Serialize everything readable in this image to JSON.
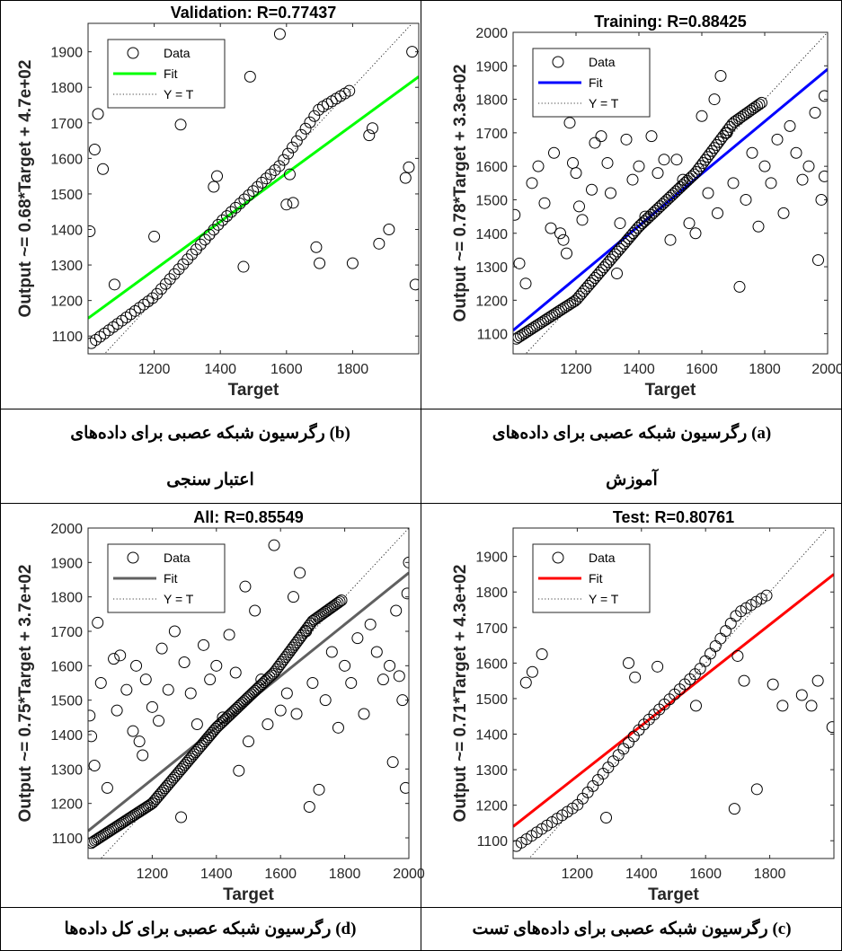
{
  "captions": {
    "b": {
      "letter": "(b)",
      "line1": "رگرسیون شبکه عصبی برای داده‌های",
      "line2": "اعتبار سنجی"
    },
    "a": {
      "letter": "(a)",
      "line1": "رگرسیون شبکه عصبی برای داده‌های",
      "line2": "آموزش"
    },
    "d": {
      "letter": "(d)",
      "line1": "رگرسیون شبکه عصبی برای کل داده‌ها"
    },
    "c": {
      "letter": "(c)",
      "line1": "رگرسیون شبکه عصبی برای داده‌های تست"
    }
  },
  "chart_data": [
    {
      "id": "validation",
      "type": "scatter",
      "title": "Validation: R=0.77437",
      "xlabel": "Target",
      "ylabel": "Output ~= 0.68*Target + 4.7e+02",
      "xlim": [
        1000,
        2000
      ],
      "ylim": [
        1050,
        1980
      ],
      "xticks": [
        1200,
        1400,
        1600,
        1800
      ],
      "yticks": [
        1100,
        1200,
        1300,
        1400,
        1500,
        1600,
        1700,
        1800,
        1900
      ],
      "fit": {
        "slope": 0.68,
        "intercept": 470,
        "color": "#00ff00"
      },
      "legend": {
        "data": "Data",
        "fit": "Fit",
        "yt": "Y = T"
      },
      "curve": [
        [
          1010,
          1080
        ],
        [
          1200,
          1210
        ],
        [
          1400,
          1420
        ],
        [
          1580,
          1580
        ],
        [
          1700,
          1740
        ],
        [
          1790,
          1790
        ]
      ],
      "scatter": [
        [
          1005,
          1395
        ],
        [
          1020,
          1625
        ],
        [
          1030,
          1725
        ],
        [
          1045,
          1570
        ],
        [
          1080,
          1245
        ],
        [
          1200,
          1380
        ],
        [
          1280,
          1695
        ],
        [
          1380,
          1520
        ],
        [
          1390,
          1550
        ],
        [
          1470,
          1295
        ],
        [
          1490,
          1830
        ],
        [
          1580,
          1950
        ],
        [
          1600,
          1470
        ],
        [
          1610,
          1555
        ],
        [
          1620,
          1475
        ],
        [
          1690,
          1350
        ],
        [
          1700,
          1305
        ],
        [
          1800,
          1305
        ],
        [
          1850,
          1665
        ],
        [
          1860,
          1685
        ],
        [
          1880,
          1360
        ],
        [
          1910,
          1400
        ],
        [
          1960,
          1545
        ],
        [
          1970,
          1575
        ],
        [
          1980,
          1900
        ],
        [
          1990,
          1245
        ]
      ],
      "curve_n": 60
    },
    {
      "id": "training",
      "type": "scatter",
      "title": "Training: R=0.88425",
      "xlabel": "Target",
      "ylabel": "Output ~= 0.78*Target + 3.3e+02",
      "xlim": [
        1000,
        2000
      ],
      "ylim": [
        1040,
        2000
      ],
      "xticks": [
        1200,
        1400,
        1600,
        1800,
        2000
      ],
      "yticks": [
        1100,
        1200,
        1300,
        1400,
        1500,
        1600,
        1700,
        1800,
        1900,
        2000
      ],
      "fit": {
        "slope": 0.78,
        "intercept": 330,
        "color": "#0000ff"
      },
      "legend": {
        "data": "Data",
        "fit": "Fit",
        "yt": "Y = T"
      },
      "curve": [
        [
          1010,
          1085
        ],
        [
          1200,
          1200
        ],
        [
          1400,
          1420
        ],
        [
          1580,
          1580
        ],
        [
          1700,
          1730
        ],
        [
          1790,
          1790
        ]
      ],
      "scatter": [
        [
          1005,
          1455
        ],
        [
          1020,
          1310
        ],
        [
          1040,
          1250
        ],
        [
          1060,
          1550
        ],
        [
          1080,
          1600
        ],
        [
          1100,
          1490
        ],
        [
          1120,
          1415
        ],
        [
          1130,
          1640
        ],
        [
          1150,
          1400
        ],
        [
          1160,
          1380
        ],
        [
          1170,
          1340
        ],
        [
          1180,
          1730
        ],
        [
          1190,
          1610
        ],
        [
          1200,
          1580
        ],
        [
          1210,
          1480
        ],
        [
          1220,
          1440
        ],
        [
          1250,
          1530
        ],
        [
          1260,
          1670
        ],
        [
          1280,
          1690
        ],
        [
          1300,
          1610
        ],
        [
          1310,
          1520
        ],
        [
          1330,
          1280
        ],
        [
          1340,
          1430
        ],
        [
          1360,
          1680
        ],
        [
          1380,
          1560
        ],
        [
          1400,
          1600
        ],
        [
          1420,
          1450
        ],
        [
          1440,
          1690
        ],
        [
          1460,
          1580
        ],
        [
          1480,
          1620
        ],
        [
          1500,
          1380
        ],
        [
          1520,
          1620
        ],
        [
          1540,
          1560
        ],
        [
          1560,
          1430
        ],
        [
          1580,
          1400
        ],
        [
          1600,
          1750
        ],
        [
          1620,
          1520
        ],
        [
          1640,
          1800
        ],
        [
          1650,
          1460
        ],
        [
          1660,
          1870
        ],
        [
          1680,
          1700
        ],
        [
          1700,
          1550
        ],
        [
          1720,
          1240
        ],
        [
          1740,
          1500
        ],
        [
          1760,
          1640
        ],
        [
          1780,
          1420
        ],
        [
          1800,
          1600
        ],
        [
          1820,
          1550
        ],
        [
          1840,
          1680
        ],
        [
          1860,
          1460
        ],
        [
          1880,
          1720
        ],
        [
          1900,
          1640
        ],
        [
          1920,
          1560
        ],
        [
          1940,
          1600
        ],
        [
          1960,
          1760
        ],
        [
          1970,
          1320
        ],
        [
          1980,
          1500
        ],
        [
          1990,
          1570
        ],
        [
          1990,
          1810
        ]
      ],
      "curve_n": 110
    },
    {
      "id": "all",
      "type": "scatter",
      "title": "All: R=0.85549",
      "xlabel": "Target",
      "ylabel": "Output ~= 0.75*Target + 3.7e+02",
      "xlim": [
        1000,
        2000
      ],
      "ylim": [
        1040,
        2000
      ],
      "xticks": [
        1200,
        1400,
        1600,
        1800,
        2000
      ],
      "yticks": [
        1100,
        1200,
        1300,
        1400,
        1500,
        1600,
        1700,
        1800,
        1900,
        2000
      ],
      "fit": {
        "slope": 0.75,
        "intercept": 370,
        "color": "#606060"
      },
      "legend": {
        "data": "Data",
        "fit": "Fit",
        "yt": "Y = T"
      },
      "curve": [
        [
          1010,
          1085
        ],
        [
          1200,
          1200
        ],
        [
          1400,
          1420
        ],
        [
          1580,
          1580
        ],
        [
          1700,
          1730
        ],
        [
          1790,
          1790
        ]
      ],
      "scatter": [
        [
          1005,
          1455
        ],
        [
          1010,
          1395
        ],
        [
          1020,
          1310
        ],
        [
          1030,
          1725
        ],
        [
          1040,
          1550
        ],
        [
          1060,
          1245
        ],
        [
          1080,
          1620
        ],
        [
          1090,
          1470
        ],
        [
          1100,
          1630
        ],
        [
          1120,
          1530
        ],
        [
          1140,
          1410
        ],
        [
          1150,
          1600
        ],
        [
          1160,
          1380
        ],
        [
          1170,
          1340
        ],
        [
          1180,
          1560
        ],
        [
          1200,
          1480
        ],
        [
          1220,
          1440
        ],
        [
          1230,
          1650
        ],
        [
          1250,
          1530
        ],
        [
          1270,
          1700
        ],
        [
          1290,
          1160
        ],
        [
          1300,
          1610
        ],
        [
          1320,
          1520
        ],
        [
          1340,
          1430
        ],
        [
          1360,
          1660
        ],
        [
          1380,
          1560
        ],
        [
          1400,
          1600
        ],
        [
          1420,
          1450
        ],
        [
          1440,
          1690
        ],
        [
          1460,
          1580
        ],
        [
          1470,
          1295
        ],
        [
          1490,
          1830
        ],
        [
          1500,
          1380
        ],
        [
          1520,
          1760
        ],
        [
          1540,
          1560
        ],
        [
          1560,
          1430
        ],
        [
          1580,
          1950
        ],
        [
          1600,
          1470
        ],
        [
          1620,
          1520
        ],
        [
          1640,
          1800
        ],
        [
          1650,
          1460
        ],
        [
          1660,
          1870
        ],
        [
          1680,
          1700
        ],
        [
          1690,
          1190
        ],
        [
          1700,
          1550
        ],
        [
          1720,
          1240
        ],
        [
          1740,
          1500
        ],
        [
          1760,
          1640
        ],
        [
          1780,
          1420
        ],
        [
          1800,
          1600
        ],
        [
          1820,
          1550
        ],
        [
          1840,
          1680
        ],
        [
          1860,
          1460
        ],
        [
          1880,
          1720
        ],
        [
          1900,
          1640
        ],
        [
          1920,
          1560
        ],
        [
          1940,
          1600
        ],
        [
          1950,
          1320
        ],
        [
          1960,
          1760
        ],
        [
          1970,
          1570
        ],
        [
          1980,
          1500
        ],
        [
          1990,
          1245
        ],
        [
          1995,
          1810
        ],
        [
          2000,
          1900
        ]
      ],
      "curve_n": 140
    },
    {
      "id": "test",
      "type": "scatter",
      "title": "Test: R=0.80761",
      "xlabel": "Target",
      "ylabel": "Output ~= 0.71*Target + 4.3e+02",
      "xlim": [
        1000,
        2000
      ],
      "ylim": [
        1050,
        1980
      ],
      "xticks": [
        1200,
        1400,
        1600,
        1800
      ],
      "yticks": [
        1100,
        1200,
        1300,
        1400,
        1500,
        1600,
        1700,
        1800,
        1900
      ],
      "fit": {
        "slope": 0.71,
        "intercept": 430,
        "color": "#ff0000"
      },
      "legend": {
        "data": "Data",
        "fit": "Fit",
        "yt": "Y = T"
      },
      "curve": [
        [
          1010,
          1085
        ],
        [
          1200,
          1200
        ],
        [
          1400,
          1420
        ],
        [
          1580,
          1580
        ],
        [
          1700,
          1740
        ],
        [
          1790,
          1790
        ]
      ],
      "scatter": [
        [
          1040,
          1545
        ],
        [
          1060,
          1575
        ],
        [
          1090,
          1625
        ],
        [
          1290,
          1165
        ],
        [
          1360,
          1600
        ],
        [
          1380,
          1560
        ],
        [
          1450,
          1590
        ],
        [
          1570,
          1480
        ],
        [
          1690,
          1190
        ],
        [
          1700,
          1620
        ],
        [
          1720,
          1550
        ],
        [
          1760,
          1245
        ],
        [
          1810,
          1540
        ],
        [
          1840,
          1480
        ],
        [
          1900,
          1510
        ],
        [
          1930,
          1480
        ],
        [
          1950,
          1550
        ],
        [
          1995,
          1420
        ]
      ],
      "curve_n": 50
    }
  ]
}
